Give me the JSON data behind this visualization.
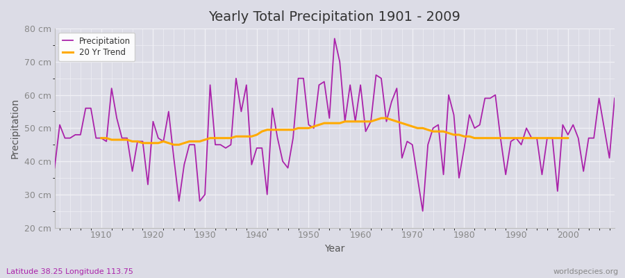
{
  "title": "Yearly Total Precipitation 1901 - 2009",
  "xlabel": "Year",
  "ylabel": "Precipitation",
  "subtitle": "Latitude 38.25 Longitude 113.75",
  "watermark": "worldspecies.org",
  "years": [
    1901,
    1902,
    1903,
    1904,
    1905,
    1906,
    1907,
    1908,
    1909,
    1910,
    1911,
    1912,
    1913,
    1914,
    1915,
    1916,
    1917,
    1918,
    1919,
    1920,
    1921,
    1922,
    1923,
    1924,
    1925,
    1926,
    1927,
    1928,
    1929,
    1930,
    1931,
    1932,
    1933,
    1934,
    1935,
    1936,
    1937,
    1938,
    1939,
    1940,
    1941,
    1942,
    1943,
    1944,
    1945,
    1946,
    1947,
    1948,
    1949,
    1950,
    1951,
    1952,
    1953,
    1954,
    1955,
    1956,
    1957,
    1958,
    1959,
    1960,
    1961,
    1962,
    1963,
    1964,
    1965,
    1966,
    1967,
    1968,
    1969,
    1970,
    1971,
    1972,
    1973,
    1974,
    1975,
    1976,
    1977,
    1978,
    1979,
    1980,
    1981,
    1982,
    1983,
    1984,
    1985,
    1986,
    1987,
    1988,
    1989,
    1990,
    1991,
    1992,
    1993,
    1994,
    1995,
    1996,
    1997,
    1998,
    1999,
    2000,
    2001,
    2002,
    2003,
    2004,
    2005,
    2006,
    2007,
    2008,
    2009
  ],
  "precip": [
    38,
    51,
    47,
    47,
    48,
    48,
    56,
    56,
    47,
    47,
    46,
    62,
    53,
    47,
    47,
    37,
    46,
    46,
    33,
    52,
    47,
    46,
    55,
    41,
    28,
    39,
    45,
    45,
    28,
    30,
    63,
    45,
    45,
    44,
    45,
    65,
    55,
    63,
    39,
    44,
    44,
    30,
    56,
    47,
    40,
    38,
    47,
    65,
    65,
    51,
    50,
    63,
    64,
    53,
    77,
    70,
    52,
    63,
    52,
    63,
    49,
    52,
    66,
    65,
    52,
    58,
    62,
    41,
    46,
    45,
    35,
    25,
    45,
    50,
    51,
    36,
    60,
    54,
    35,
    44,
    54,
    50,
    51,
    59,
    59,
    60,
    47,
    36,
    46,
    47,
    45,
    50,
    47,
    47,
    36,
    47,
    47,
    31,
    51,
    48,
    51,
    47,
    37,
    47,
    47,
    59,
    50,
    41,
    59
  ],
  "trend_years": [
    1910,
    1911,
    1912,
    1913,
    1914,
    1915,
    1916,
    1917,
    1918,
    1919,
    1920,
    1921,
    1922,
    1923,
    1924,
    1925,
    1926,
    1927,
    1928,
    1929,
    1930,
    1931,
    1932,
    1933,
    1934,
    1935,
    1936,
    1937,
    1938,
    1939,
    1940,
    1941,
    1942,
    1943,
    1944,
    1945,
    1946,
    1947,
    1948,
    1949,
    1950,
    1951,
    1952,
    1953,
    1954,
    1955,
    1956,
    1957,
    1958,
    1959,
    1960,
    1961,
    1962,
    1963,
    1964,
    1965,
    1966,
    1967,
    1968,
    1969,
    1970,
    1971,
    1972,
    1973,
    1974,
    1975,
    1976,
    1977,
    1978,
    1979,
    1980,
    1981,
    1982,
    1983,
    1984,
    1985,
    1986,
    1987,
    1988,
    1989,
    1990,
    1991,
    1992,
    1993,
    1994,
    1995,
    1996,
    1997,
    1998,
    1999,
    2000
  ],
  "trend": [
    47.0,
    47.0,
    46.5,
    46.5,
    46.5,
    46.5,
    46.0,
    46.0,
    45.5,
    45.5,
    45.5,
    45.5,
    46.0,
    45.5,
    45.0,
    45.0,
    45.5,
    46.0,
    46.0,
    46.0,
    46.5,
    47.0,
    47.0,
    47.0,
    47.0,
    47.0,
    47.5,
    47.5,
    47.5,
    47.5,
    48.0,
    49.0,
    49.5,
    49.5,
    49.5,
    49.5,
    49.5,
    49.5,
    50.0,
    50.0,
    50.0,
    50.5,
    51.0,
    51.5,
    51.5,
    51.5,
    51.5,
    52.0,
    52.0,
    52.0,
    52.0,
    52.0,
    52.0,
    52.5,
    53.0,
    53.0,
    52.5,
    52.0,
    51.5,
    51.0,
    50.5,
    50.0,
    50.0,
    49.5,
    49.0,
    49.0,
    49.0,
    48.5,
    48.0,
    48.0,
    47.5,
    47.5,
    47.0,
    47.0,
    47.0,
    47.0,
    47.0,
    47.0,
    47.0,
    47.0,
    47.0,
    47.0,
    47.0,
    47.0,
    47.0,
    47.0,
    47.0,
    47.0,
    47.0,
    47.0,
    47.0
  ],
  "precip_color": "#aa22aa",
  "trend_color": "#ffaa00",
  "background_color": "#dcdce6",
  "plot_bg_color": "#dcdce6",
  "grid_color": "#f0f0f5",
  "ylim": [
    20,
    80
  ],
  "yticks": [
    20,
    30,
    40,
    50,
    60,
    70,
    80
  ],
  "ytick_labels": [
    "20 cm",
    "30 cm",
    "40 cm",
    "50 cm",
    "60 cm",
    "70 cm",
    "80 cm"
  ],
  "xlim": [
    1901,
    2009
  ],
  "xticks": [
    1910,
    1920,
    1930,
    1940,
    1950,
    1960,
    1970,
    1980,
    1990,
    2000
  ],
  "title_fontsize": 14,
  "label_fontsize": 9,
  "tick_fontsize": 9
}
